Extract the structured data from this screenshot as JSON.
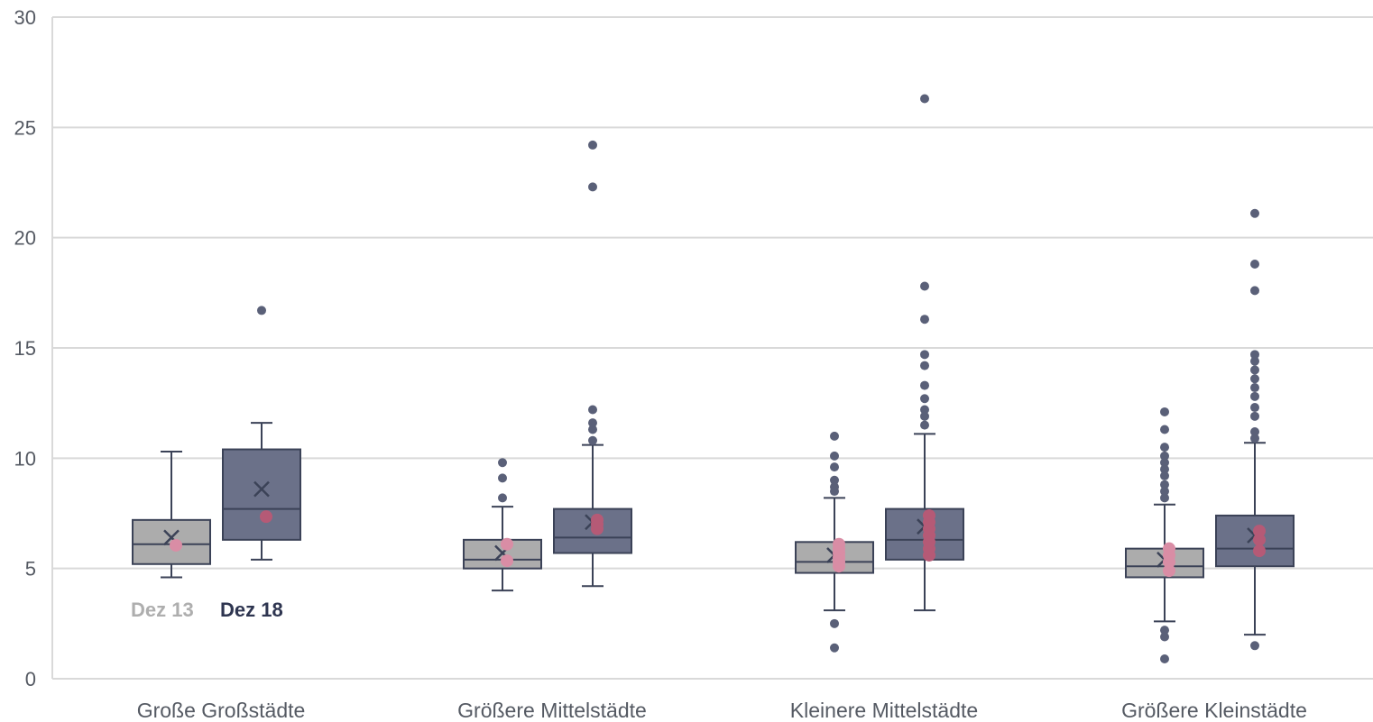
{
  "chart_data": {
    "type": "box",
    "ylim": [
      0,
      30
    ],
    "yticks": [
      "0",
      "5",
      "10",
      "15",
      "20",
      "25",
      "30"
    ],
    "grid": true,
    "categories": [
      "Große Großstädte",
      "Größere Mittelstädte",
      "Kleinere Mittelstädte",
      "Größere Kleinstädte"
    ],
    "legend_placement": "inside-bottom-left",
    "series": [
      {
        "name": "Dez 13",
        "color": "#acacac",
        "boxes": [
          {
            "min": 4.6,
            "q1": 5.2,
            "median": 6.1,
            "q3": 7.2,
            "max": 10.3,
            "mean": 6.4,
            "outliers": [],
            "highlights": [
              6.05
            ]
          },
          {
            "min": 4.0,
            "q1": 5.0,
            "median": 5.4,
            "q3": 6.3,
            "max": 7.8,
            "mean": 5.7,
            "outliers": [
              8.2,
              9.1,
              9.8
            ],
            "highlights": [
              6.1,
              5.35
            ]
          },
          {
            "min": 3.1,
            "q1": 4.8,
            "median": 5.3,
            "q3": 6.2,
            "max": 8.2,
            "mean": 5.6,
            "outliers": [
              1.4,
              2.5,
              8.5,
              8.7,
              9.0,
              9.6,
              10.1,
              11.0
            ],
            "highlights": [
              5.1,
              5.3,
              5.5,
              5.7,
              5.9,
              6.1
            ]
          },
          {
            "min": 2.6,
            "q1": 4.6,
            "median": 5.1,
            "q3": 5.9,
            "max": 7.9,
            "mean": 5.4,
            "outliers": [
              0.9,
              1.9,
              2.2,
              8.2,
              8.5,
              8.8,
              9.2,
              9.5,
              9.8,
              10.1,
              10.5,
              11.3,
              12.1
            ],
            "highlights": [
              4.9,
              5.3,
              5.6,
              5.9
            ]
          }
        ]
      },
      {
        "name": "Dez 18",
        "color": "#6b7189",
        "boxes": [
          {
            "min": 5.4,
            "q1": 6.3,
            "median": 7.7,
            "q3": 10.4,
            "max": 11.6,
            "mean": 8.6,
            "outliers": [
              16.7
            ],
            "highlights": [
              7.35
            ]
          },
          {
            "min": 4.2,
            "q1": 5.7,
            "median": 6.4,
            "q3": 7.7,
            "max": 10.6,
            "mean": 7.1,
            "outliers": [
              10.8,
              11.3,
              11.6,
              12.2,
              22.3,
              24.2
            ],
            "highlights": [
              6.8,
              7.0,
              7.2
            ]
          },
          {
            "min": 3.1,
            "q1": 5.4,
            "median": 6.3,
            "q3": 7.7,
            "max": 11.1,
            "mean": 6.9,
            "outliers": [
              11.5,
              11.9,
              12.2,
              12.7,
              13.3,
              14.2,
              14.7,
              16.3,
              17.8,
              26.3
            ],
            "highlights": [
              5.6,
              5.9,
              6.2,
              6.5,
              6.8,
              7.1,
              7.4
            ]
          },
          {
            "min": 2.0,
            "q1": 5.1,
            "median": 5.9,
            "q3": 7.4,
            "max": 10.7,
            "mean": 6.5,
            "outliers": [
              1.5,
              10.9,
              11.2,
              11.9,
              12.3,
              12.8,
              13.2,
              13.6,
              14.0,
              14.4,
              14.7,
              17.6,
              18.8,
              21.1
            ],
            "highlights": [
              5.8,
              6.3,
              6.7
            ]
          }
        ]
      }
    ],
    "styles": {
      "box_stroke": "#3b4257",
      "outlier_color": "#5a6078",
      "highlight_color": "#b55a76",
      "highlight_color_light": "#d98da5",
      "grid_color": "#d9d9d9"
    }
  }
}
